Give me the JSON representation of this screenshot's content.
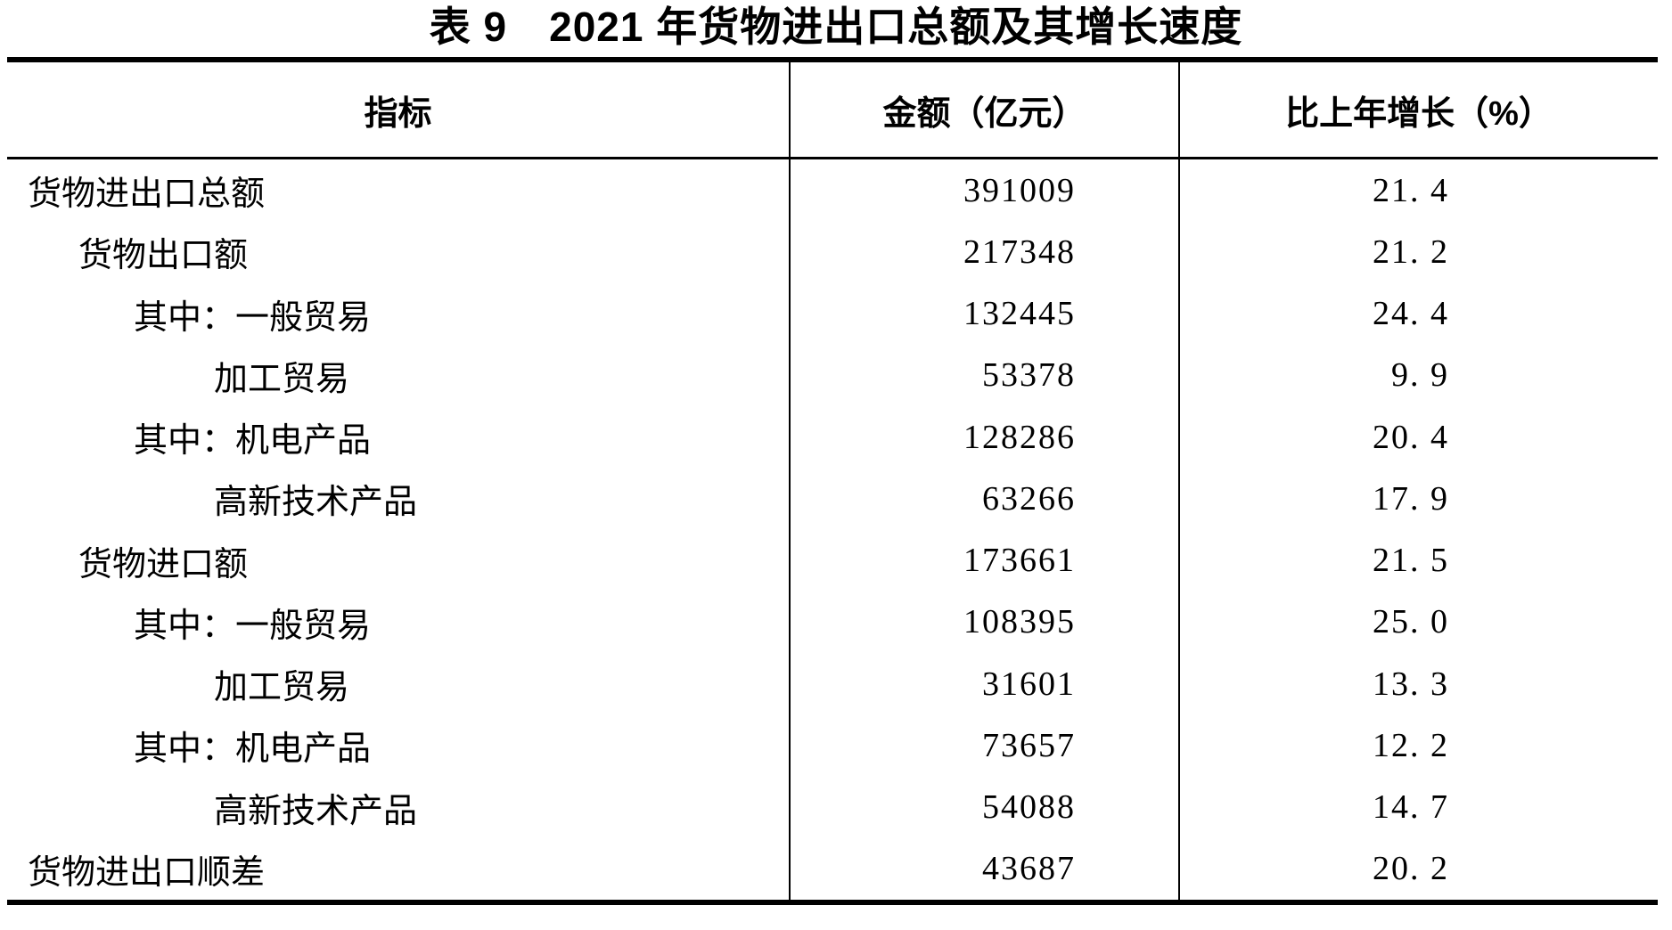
{
  "title": "表 9　2021 年货物进出口总额及其增长速度",
  "table": {
    "columns": {
      "indicator": "指标",
      "amount": "金额（亿元）",
      "growth": "比上年增长（%）"
    },
    "rows": [
      {
        "indicator": "货物进出口总额",
        "amount": "391009",
        "growth": "21. 4"
      },
      {
        "indicator": "货物出口额",
        "amount": "217348",
        "growth": "21. 2"
      },
      {
        "indicator": "其中：一般贸易",
        "amount": "132445",
        "growth": "24. 4"
      },
      {
        "indicator": "加工贸易",
        "amount": "53378",
        "growth": "9. 9"
      },
      {
        "indicator": "其中：机电产品",
        "amount": "128286",
        "growth": "20. 4"
      },
      {
        "indicator": "高新技术产品",
        "amount": "63266",
        "growth": "17. 9"
      },
      {
        "indicator": "货物进口额",
        "amount": "173661",
        "growth": "21. 5"
      },
      {
        "indicator": "其中：一般贸易",
        "amount": "108395",
        "growth": "25. 0"
      },
      {
        "indicator": "加工贸易",
        "amount": "31601",
        "growth": "13. 3"
      },
      {
        "indicator": "其中：机电产品",
        "amount": "73657",
        "growth": "12. 2"
      },
      {
        "indicator": "高新技术产品",
        "amount": "54088",
        "growth": "14. 7"
      },
      {
        "indicator": "货物进出口顺差",
        "amount": "43687",
        "growth": "20. 2"
      }
    ],
    "colors": {
      "text": "#000000",
      "background": "#ffffff",
      "border": "#000000"
    }
  }
}
